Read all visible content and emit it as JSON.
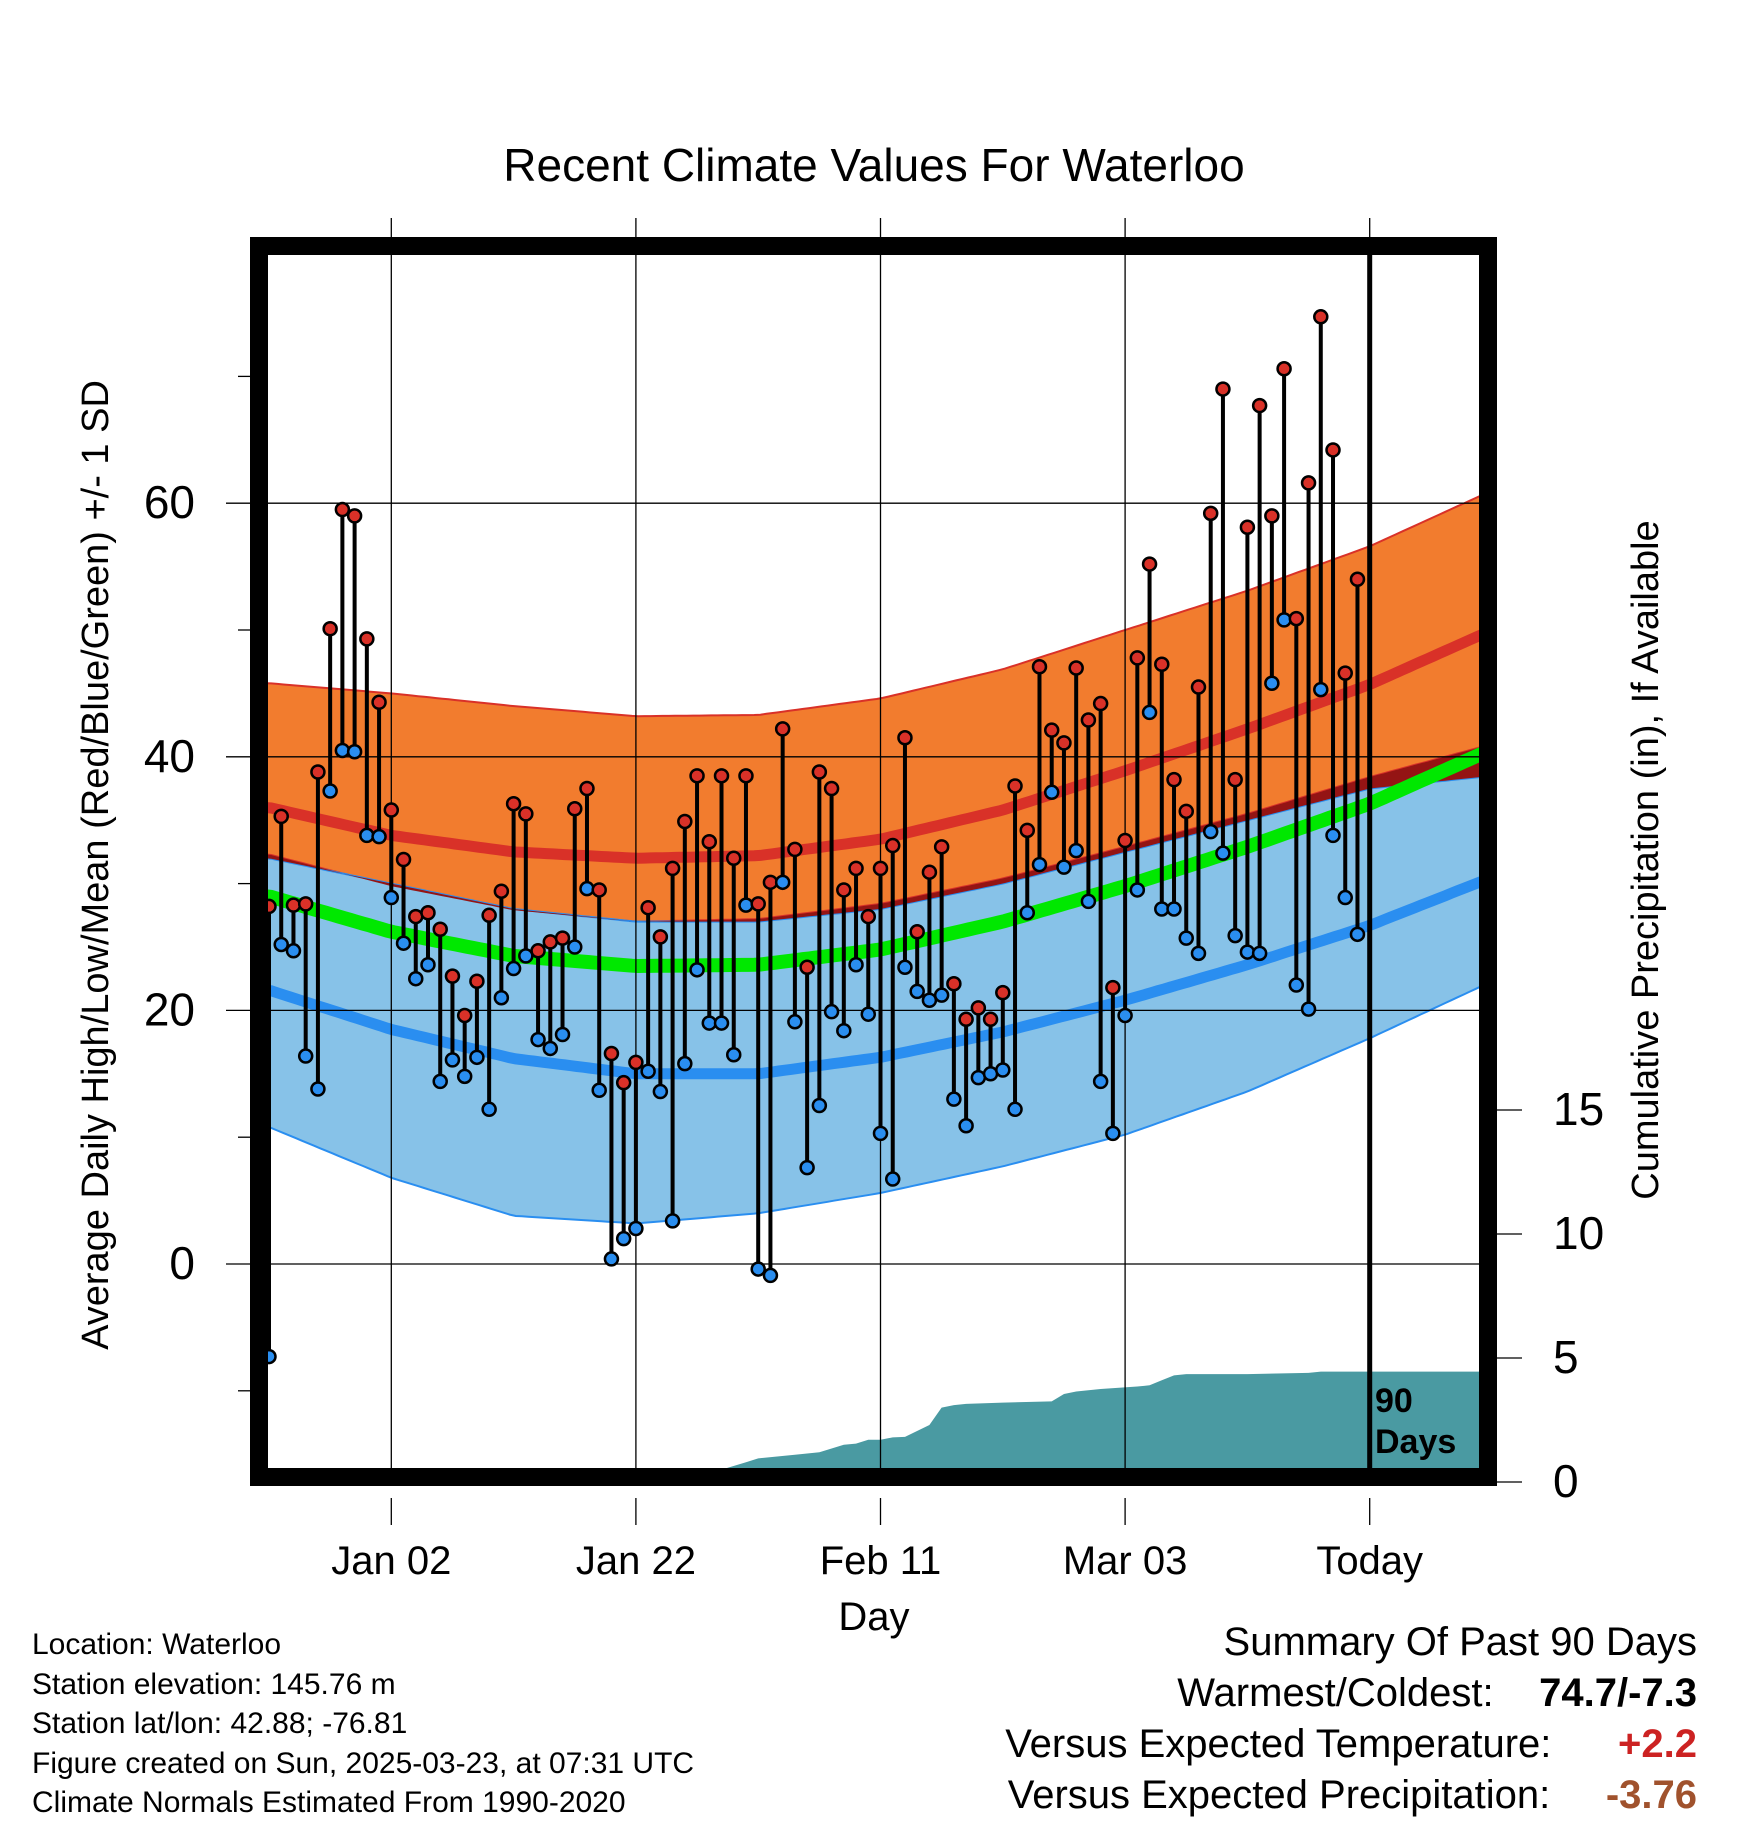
{
  "chart_data": {
    "type": "line",
    "title": "Recent Climate Values For Waterloo",
    "xlabel": "Day",
    "ylabel": "Average Daily High/Low/Mean (Red/Blue/Green) +/- 1 SD",
    "y2label": "Cumulative Precipitation (in), If Available",
    "ylim": [
      -17,
      80
    ],
    "y_ticks": [
      0,
      20,
      40,
      60
    ],
    "y2lim": [
      0,
      20
    ],
    "y2_ticks": [
      0,
      5,
      10,
      15
    ],
    "x_tick_labels": [
      "Jan 02",
      "Jan 22",
      "Feb 11",
      "Mar 03",
      "Today"
    ],
    "x_tick_days": [
      10,
      30,
      50,
      70,
      90
    ],
    "today_line_label": "90\nDays",
    "daily": {
      "highs": [
        28.2,
        35.3,
        28.3,
        28.4,
        38.8,
        50.1,
        59.5,
        59.0,
        49.3,
        44.3,
        35.8,
        31.9,
        27.4,
        27.7,
        26.4,
        22.7,
        19.6,
        22.3,
        27.5,
        29.4,
        36.3,
        35.5,
        24.7,
        25.4,
        25.7,
        35.9,
        37.5,
        29.5,
        16.6,
        14.3,
        15.9,
        28.1,
        25.8,
        31.2,
        34.9,
        38.5,
        33.3,
        38.5,
        32.0,
        38.5,
        28.4,
        30.1,
        42.2,
        32.7,
        23.4,
        38.8,
        37.5,
        29.5,
        31.2,
        27.4,
        31.2,
        33.0,
        41.5,
        26.2,
        30.9,
        32.9,
        22.1,
        19.3,
        20.2,
        19.3,
        21.4,
        37.7,
        34.2,
        47.1,
        42.1,
        41.1,
        47.0,
        42.9,
        44.2,
        21.8,
        33.4,
        47.8,
        55.2,
        47.3,
        38.2,
        35.7,
        45.5,
        59.2,
        69.0,
        38.2,
        58.1,
        67.7,
        59.0,
        70.6,
        50.9,
        61.6,
        74.7,
        64.2,
        46.6,
        54.0
      ],
      "lows": [
        -7.3,
        25.2,
        24.7,
        16.4,
        13.8,
        37.3,
        40.5,
        40.4,
        33.8,
        33.7,
        28.9,
        25.3,
        22.5,
        23.6,
        14.4,
        16.1,
        14.8,
        16.3,
        12.2,
        21.0,
        23.3,
        24.3,
        17.7,
        17.0,
        18.1,
        25.0,
        29.6,
        13.7,
        0.4,
        2.0,
        2.8,
        15.2,
        13.6,
        3.4,
        15.8,
        23.2,
        19.0,
        19.0,
        16.5,
        28.3,
        -0.4,
        -0.9,
        30.1,
        19.1,
        7.6,
        12.5,
        19.9,
        18.4,
        23.6,
        19.7,
        10.3,
        6.7,
        23.4,
        21.5,
        20.8,
        21.2,
        13.0,
        10.9,
        14.7,
        15.0,
        15.3,
        12.2,
        27.7,
        31.5,
        37.2,
        31.3,
        32.6,
        28.6,
        14.4,
        10.3,
        19.6,
        29.5,
        43.5,
        28.0,
        28.0,
        25.7,
        24.5,
        34.1,
        32.4,
        25.9,
        24.6,
        24.5,
        45.8,
        50.8,
        22.0,
        20.1,
        45.3,
        33.8,
        28.9,
        26.0
      ]
    },
    "normals": {
      "days": [
        0,
        10,
        20,
        30,
        40,
        50,
        60,
        70,
        80,
        90,
        100
      ],
      "high_mean": [
        36.0,
        33.8,
        32.5,
        32.0,
        32.2,
        33.5,
        35.8,
        38.9,
        42.2,
        45.7,
        50.0
      ],
      "high_upper": [
        45.8,
        45.0,
        44.0,
        43.2,
        43.3,
        44.6,
        46.9,
        50.0,
        53.1,
        56.6,
        61.0
      ],
      "high_lower": [
        32.3,
        29.8,
        27.9,
        27.0,
        27.2,
        28.4,
        30.4,
        32.9,
        35.5,
        38.4,
        41.0
      ],
      "low_mean": [
        21.6,
        18.5,
        16.2,
        15.0,
        15.0,
        16.3,
        18.3,
        20.8,
        23.6,
        26.7,
        30.5
      ],
      "low_upper": [
        32.0,
        30.0,
        28.0,
        27.0,
        27.0,
        28.0,
        30.0,
        32.5,
        35.0,
        37.5,
        38.5
      ],
      "low_lower": [
        10.8,
        6.8,
        3.8,
        3.2,
        4.0,
        5.6,
        7.7,
        10.2,
        13.6,
        17.8,
        22.3
      ],
      "mean": [
        29.0,
        26.2,
        24.3,
        23.5,
        23.6,
        24.8,
        27.0,
        29.8,
        32.9,
        36.3,
        40.6
      ]
    },
    "precipitation": {
      "days": [
        0,
        18,
        19,
        25,
        27,
        30,
        36,
        37,
        39,
        40,
        43,
        45,
        46,
        47,
        48,
        49,
        50,
        51,
        52,
        54,
        55,
        56,
        57,
        60,
        64,
        65,
        66,
        67,
        68,
        71,
        72,
        73,
        74,
        75,
        80,
        85,
        86,
        90,
        100
      ],
      "cumulative": [
        0,
        0,
        0.05,
        0.1,
        0.15,
        0.2,
        0.35,
        0.5,
        0.8,
        0.95,
        1.1,
        1.2,
        1.35,
        1.5,
        1.55,
        1.7,
        1.7,
        1.8,
        1.82,
        2.3,
        3.0,
        3.1,
        3.15,
        3.2,
        3.25,
        3.55,
        3.65,
        3.7,
        3.75,
        3.85,
        3.9,
        4.1,
        4.3,
        4.35,
        4.35,
        4.4,
        4.45,
        4.45,
        4.45
      ]
    }
  },
  "colors": {
    "high_band": "#f27c2e",
    "high_line": "#d93128",
    "overlap_band": "#941414",
    "low_band": "#87c2e8",
    "low_line": "#2a8ef0",
    "mean_line": "#00e800",
    "precip_fill": "#4a9aa2",
    "high_dot": "#d93128",
    "low_dot": "#2a8ef0"
  },
  "info": {
    "location": "Location: Waterloo",
    "elevation": "Station elevation: 145.76 m",
    "latlon": "Station lat/lon: 42.88; -76.81",
    "created": "Figure created on Sun, 2025-03-23, at 07:31 UTC",
    "normals": "Climate Normals Estimated From 1990-2020"
  },
  "summary": {
    "title": "Summary Of Past 90 Days",
    "warmest_label": "Warmest/Coldest:",
    "warmest_value": "74.7/-7.3",
    "temp_label": "Versus Expected Temperature:",
    "temp_value": "+2.2",
    "precip_label": "Versus Expected Precipitation:",
    "precip_value": "-3.76"
  }
}
